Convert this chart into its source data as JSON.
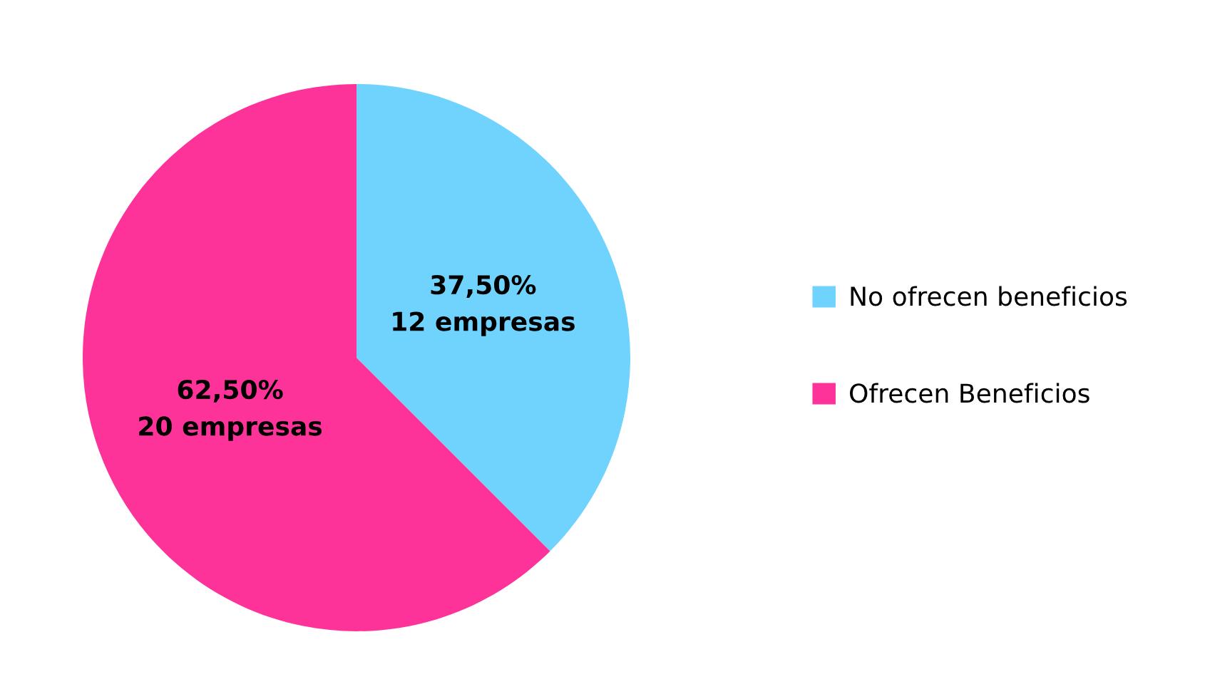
{
  "chart_data": {
    "type": "pie",
    "categories": [
      "No ofrecen beneficios",
      "Ofrecen Beneficios"
    ],
    "values": [
      12,
      20
    ],
    "colors": [
      "#6fd3fd",
      "#fe3399"
    ],
    "value_labels": [
      "37,50%\n12 empresas",
      "62,50%\n20 empresas"
    ],
    "legend": "right"
  }
}
